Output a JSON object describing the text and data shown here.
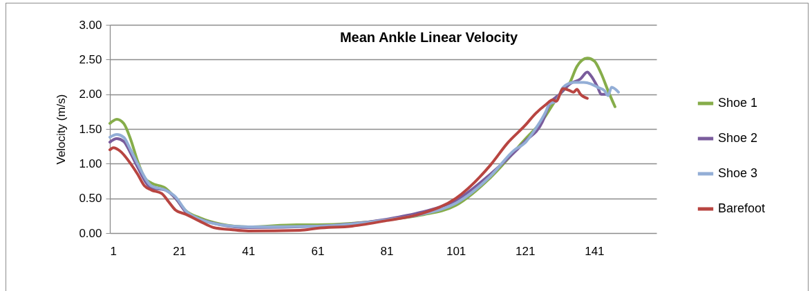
{
  "chart_data": {
    "type": "line",
    "title": "Mean Ankle Linear Velocity",
    "ylabel": "Velocity (m/s)",
    "xlim": [
      1,
      159
    ],
    "xticks": [
      1,
      21,
      41,
      61,
      81,
      101,
      121,
      141
    ],
    "ylim": [
      0,
      3
    ],
    "yticks": [
      {
        "value": 0,
        "label": "0.00"
      },
      {
        "value": 0.5,
        "label": "0.50"
      },
      {
        "value": 1,
        "label": "1.00"
      },
      {
        "value": 1.5,
        "label": "1.50"
      },
      {
        "value": 2,
        "label": "2.00"
      },
      {
        "value": 2.5,
        "label": "2.50"
      },
      {
        "value": 3,
        "label": "3.00"
      }
    ],
    "grid": "y",
    "legend": "right",
    "line_style": "solid",
    "marker": "none",
    "series": [
      {
        "name": "Shoe 1",
        "color": "#86ad4a",
        "x": [
          1,
          3,
          5,
          7,
          9,
          11,
          13,
          17,
          20,
          23,
          27,
          33,
          41,
          55,
          61,
          81,
          91,
          101,
          111,
          121,
          126,
          131,
          134,
          136,
          139,
          141,
          143,
          145,
          147
        ],
        "values": [
          1.58,
          1.64,
          1.58,
          1.35,
          1.04,
          0.8,
          0.72,
          0.65,
          0.5,
          0.32,
          0.22,
          0.13,
          0.09,
          0.12,
          0.12,
          0.19,
          0.26,
          0.4,
          0.8,
          1.35,
          1.62,
          2.0,
          2.17,
          2.4,
          2.52,
          2.48,
          2.3,
          2.05,
          1.82
        ]
      },
      {
        "name": "Shoe 2",
        "color": "#7a5c9c",
        "x": [
          1,
          3,
          5,
          7,
          9,
          13,
          17,
          20,
          23,
          27,
          33,
          41,
          61,
          81,
          91,
          101,
          111,
          121,
          126,
          128,
          131,
          134,
          137,
          139,
          140,
          142,
          143,
          145
        ],
        "values": [
          1.31,
          1.36,
          1.32,
          1.15,
          0.95,
          0.65,
          0.62,
          0.5,
          0.3,
          0.2,
          0.12,
          0.08,
          0.1,
          0.2,
          0.3,
          0.47,
          0.85,
          1.32,
          1.6,
          1.85,
          2.0,
          2.15,
          2.22,
          2.32,
          2.27,
          2.1,
          2.0,
          2.0
        ]
      },
      {
        "name": "Shoe 3",
        "color": "#93aed6",
        "x": [
          1,
          3,
          5,
          7,
          9,
          13,
          17,
          20,
          23,
          27,
          33,
          41,
          61,
          81,
          91,
          101,
          111,
          118,
          121,
          124,
          127,
          128,
          130,
          132,
          135,
          138,
          140,
          142,
          144,
          145,
          146,
          148
        ],
        "values": [
          1.38,
          1.42,
          1.38,
          1.2,
          1.0,
          0.68,
          0.62,
          0.52,
          0.32,
          0.2,
          0.12,
          0.09,
          0.1,
          0.19,
          0.27,
          0.43,
          0.82,
          1.2,
          1.3,
          1.5,
          1.75,
          1.86,
          1.9,
          2.1,
          2.17,
          2.17,
          2.15,
          2.1,
          2.05,
          1.98,
          2.1,
          2.03
        ]
      },
      {
        "name": "Barefoot",
        "color": "#b84541",
        "x": [
          1,
          2,
          4,
          7,
          9,
          11,
          13,
          16,
          18,
          20,
          23,
          27,
          31,
          36,
          41,
          56,
          61,
          71,
          81,
          91,
          101,
          111,
          116,
          121,
          124,
          127,
          129,
          130,
          132,
          134,
          135,
          136,
          137,
          139
        ],
        "values": [
          1.2,
          1.23,
          1.18,
          1.0,
          0.85,
          0.68,
          0.62,
          0.57,
          0.45,
          0.33,
          0.27,
          0.17,
          0.08,
          0.05,
          0.03,
          0.04,
          0.07,
          0.1,
          0.18,
          0.28,
          0.5,
          0.98,
          1.3,
          1.55,
          1.72,
          1.85,
          1.92,
          1.9,
          2.08,
          2.05,
          2.03,
          2.07,
          2.0,
          1.94
        ]
      }
    ]
  }
}
